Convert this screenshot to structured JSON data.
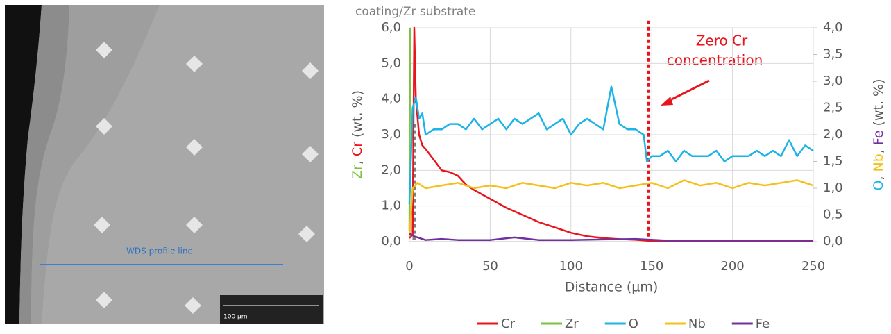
{
  "image": {
    "profile_label": "WDS profile line",
    "scale_label": "100 µm"
  },
  "chart_data": {
    "type": "line",
    "title": "coating/Zr substrate",
    "x_label": "Distance (µm)",
    "y_label": [
      {
        "text": "Zr",
        "color": "#7ec242"
      },
      {
        "text": ", "
      },
      {
        "text": "Cr",
        "color": "#e8141c"
      },
      {
        "text": " (wt. %)"
      }
    ],
    "y2_label": [
      {
        "text": "O",
        "color": "#1cb3e6"
      },
      {
        "text": ", "
      },
      {
        "text": "Nb",
        "color": "#f5c016"
      },
      {
        "text": ", "
      },
      {
        "text": "Fe",
        "color": "#7030a0"
      },
      {
        "text": " (wt. %)"
      }
    ],
    "annotation": [
      "Zero Cr",
      "concentration"
    ],
    "xlim": [
      0,
      250
    ],
    "xticks": [
      0,
      50,
      100,
      150,
      200,
      250
    ],
    "ylim": [
      0,
      6
    ],
    "yticks": [
      {
        "value": 0,
        "label": "0,0"
      },
      {
        "value": 1,
        "label": "1,0"
      },
      {
        "value": 2,
        "label": "2,0"
      },
      {
        "value": 3,
        "label": "3,0"
      },
      {
        "value": 4,
        "label": "4,0"
      },
      {
        "value": 5,
        "label": "5,0"
      },
      {
        "value": 6,
        "label": "6,0"
      }
    ],
    "y2lim": [
      0,
      4
    ],
    "y2ticks": [
      {
        "value": 0,
        "label": "0,0"
      },
      {
        "value": 0.5,
        "label": "0,5"
      },
      {
        "value": 1,
        "label": "1,0"
      },
      {
        "value": 1.5,
        "label": "1,5"
      },
      {
        "value": 2,
        "label": "2,0"
      },
      {
        "value": 2.5,
        "label": "2,5"
      },
      {
        "value": 3,
        "label": "3,0"
      },
      {
        "value": 3.5,
        "label": "3,5"
      },
      {
        "value": 4,
        "label": "4,0"
      }
    ],
    "grid": true,
    "vlines": [
      {
        "x": 148,
        "color": "#e8141c",
        "ymax": 6.2
      },
      {
        "x": 3,
        "color": "#7f7f7f",
        "ymax": 3.3
      }
    ],
    "series": [
      {
        "name": "Cr",
        "color": "#e8141c",
        "x": [
          0,
          2,
          3,
          4,
          6,
          8,
          10,
          15,
          20,
          25,
          30,
          35,
          40,
          50,
          60,
          70,
          80,
          90,
          100,
          110,
          120,
          130,
          140,
          150,
          175,
          200,
          225,
          250
        ],
        "values": [
          0.1,
          0.2,
          6.0,
          4.0,
          3.0,
          2.7,
          2.6,
          2.3,
          2.0,
          1.95,
          1.85,
          1.6,
          1.45,
          1.2,
          0.95,
          0.75,
          0.55,
          0.4,
          0.25,
          0.15,
          0.1,
          0.07,
          0.05,
          0.02,
          0.02,
          0.02,
          0.02,
          0.02
        ]
      },
      {
        "name": "Zr",
        "color": "#7ec242",
        "x": [
          0,
          0.5
        ],
        "values": [
          0.3,
          6.0
        ]
      },
      {
        "name": "O",
        "color": "#1cb3e6",
        "axis": "y2",
        "x": [
          0,
          2,
          4,
          6,
          8,
          10,
          15,
          20,
          25,
          30,
          35,
          40,
          45,
          50,
          55,
          60,
          65,
          70,
          75,
          80,
          85,
          90,
          95,
          100,
          105,
          110,
          115,
          120,
          125,
          130,
          135,
          140,
          145,
          147,
          150,
          155,
          160,
          165,
          170,
          175,
          180,
          185,
          190,
          195,
          200,
          205,
          210,
          215,
          220,
          225,
          230,
          235,
          240,
          245,
          250
        ],
        "values": [
          0.7,
          2.5,
          2.7,
          2.3,
          2.4,
          2.0,
          2.1,
          2.1,
          2.2,
          2.2,
          2.1,
          2.3,
          2.1,
          2.2,
          2.3,
          2.1,
          2.3,
          2.2,
          2.3,
          2.4,
          2.1,
          2.2,
          2.3,
          2.0,
          2.2,
          2.3,
          2.2,
          2.1,
          2.9,
          2.2,
          2.1,
          2.1,
          2.0,
          1.5,
          1.6,
          1.6,
          1.7,
          1.5,
          1.7,
          1.6,
          1.6,
          1.6,
          1.7,
          1.5,
          1.6,
          1.6,
          1.6,
          1.7,
          1.6,
          1.7,
          1.6,
          1.9,
          1.6,
          1.8,
          1.7
        ]
      },
      {
        "name": "Nb",
        "color": "#f5c016",
        "axis": "y2",
        "x": [
          0,
          2,
          5,
          10,
          20,
          30,
          40,
          50,
          60,
          70,
          80,
          90,
          100,
          110,
          120,
          130,
          140,
          150,
          160,
          170,
          180,
          190,
          200,
          210,
          220,
          230,
          240,
          250
        ],
        "values": [
          0.1,
          1.0,
          1.1,
          1.0,
          1.05,
          1.1,
          1.0,
          1.05,
          1.0,
          1.1,
          1.05,
          1.0,
          1.1,
          1.05,
          1.1,
          1.0,
          1.05,
          1.1,
          1.0,
          1.15,
          1.05,
          1.1,
          1.0,
          1.1,
          1.05,
          1.1,
          1.15,
          1.05
        ]
      },
      {
        "name": "Fe",
        "color": "#7030a0",
        "axis": "y2",
        "x": [
          0,
          3,
          10,
          20,
          30,
          50,
          65,
          80,
          100,
          120,
          140,
          160,
          180,
          200,
          220,
          250
        ],
        "values": [
          0.15,
          0.1,
          0.03,
          0.05,
          0.03,
          0.03,
          0.08,
          0.03,
          0.03,
          0.04,
          0.05,
          0.02,
          0.02,
          0.02,
          0.02,
          0.02
        ]
      }
    ]
  }
}
